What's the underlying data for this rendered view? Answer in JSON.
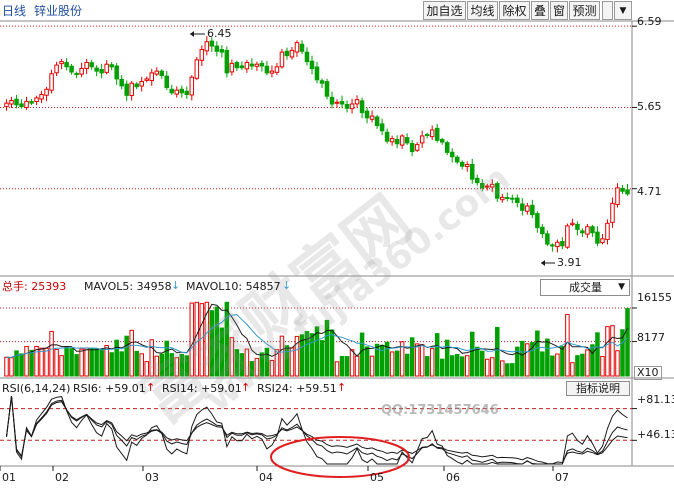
{
  "header": {
    "timeframe": "日线",
    "stock_name": "锌业股份"
  },
  "toolbar": [
    {
      "id": "add-watch",
      "label": "加自选"
    },
    {
      "id": "ma",
      "label": "均线"
    },
    {
      "id": "exright",
      "label": "除权"
    },
    {
      "id": "overlay",
      "label": "叠"
    },
    {
      "id": "window",
      "label": "窗"
    },
    {
      "id": "predict",
      "label": "预测"
    },
    {
      "id": "menu",
      "label": "▼"
    }
  ],
  "price_panel": {
    "axis_labels": [
      "6.59",
      "5.65",
      "4.71"
    ],
    "high_marker": "6.45",
    "low_marker": "3.91",
    "colors": {
      "up": "#e60000",
      "down": "#00a000",
      "grid": "#c81e1e"
    }
  },
  "volume_panel": {
    "total_label": "总手: 25393",
    "mavol5_label": "MAVOL5: 34958",
    "mavol10_label": "MAVOL10: 54857",
    "selector_value": "成交量",
    "axis_labels": [
      "16155",
      "8177",
      "X10"
    ]
  },
  "rsi_panel": {
    "title": "RSI(6,14,24)",
    "rsi6_label": "RSI6: +59.01",
    "rsi14_label": "RSI14: +59.01",
    "rsi24_label": "RSI24: +59.51",
    "explain_button": "指标说明",
    "axis_labels": [
      "+81.13",
      "+46.13"
    ]
  },
  "x_axis": {
    "months": [
      "01",
      "02",
      "03",
      "04",
      "05",
      "06",
      "07"
    ]
  },
  "watermark": {
    "text1": "富家财富网",
    "text2": "www.fujia360.com",
    "qq": "QQ:1731457646"
  },
  "chart_data": {
    "type": "candlestick",
    "title": "锌业股份 日线",
    "yaxis_ticks": [
      6.59,
      5.65,
      4.71
    ],
    "ylim": [
      3.7,
      6.65
    ],
    "high": 6.45,
    "low": 3.91,
    "closes": [
      5.7,
      5.73,
      5.68,
      5.66,
      5.72,
      5.7,
      5.76,
      5.8,
      5.86,
      6.04,
      6.14,
      6.18,
      6.12,
      6.06,
      6.03,
      6.1,
      6.17,
      6.12,
      6.07,
      6.05,
      6.15,
      6.12,
      5.98,
      5.9,
      5.79,
      5.93,
      5.89,
      5.95,
      5.98,
      6.05,
      6.07,
      6.02,
      5.88,
      5.82,
      5.85,
      5.82,
      5.8,
      6.0,
      6.2,
      6.32,
      6.41,
      6.36,
      6.3,
      6.29,
      6.05,
      6.16,
      6.11,
      6.11,
      6.17,
      6.13,
      6.15,
      6.13,
      6.05,
      6.07,
      6.12,
      6.29,
      6.25,
      6.31,
      6.4,
      6.3,
      6.18,
      6.1,
      5.97,
      5.93,
      5.78,
      5.69,
      5.71,
      5.69,
      5.64,
      5.69,
      5.74,
      5.59,
      5.53,
      5.55,
      5.44,
      5.38,
      5.26,
      5.29,
      5.23,
      5.32,
      5.24,
      5.14,
      5.22,
      5.32,
      5.33,
      5.39,
      5.27,
      5.25,
      5.13,
      5.08,
      5.02,
      4.97,
      4.99,
      4.82,
      4.78,
      4.72,
      4.74,
      4.76,
      4.6,
      4.61,
      4.6,
      4.59,
      4.55,
      4.46,
      4.51,
      4.41,
      4.26,
      4.19,
      4.07,
      4.05,
      4.09,
      4.05,
      4.28,
      4.31,
      4.24,
      4.2,
      4.27,
      4.2,
      4.08,
      4.13,
      4.31,
      4.54,
      4.72,
      4.68,
      4.65
    ],
    "volume_ticks": [
      16155,
      8177
    ],
    "volume_unit": "X10",
    "rsi_ticks": [
      81.13,
      46.13
    ],
    "rsi_last": {
      "rsi6": 59.01,
      "rsi14": 59.01,
      "rsi24": 59.51
    },
    "x_months": [
      "01",
      "02",
      "03",
      "04",
      "05",
      "06",
      "07"
    ]
  }
}
